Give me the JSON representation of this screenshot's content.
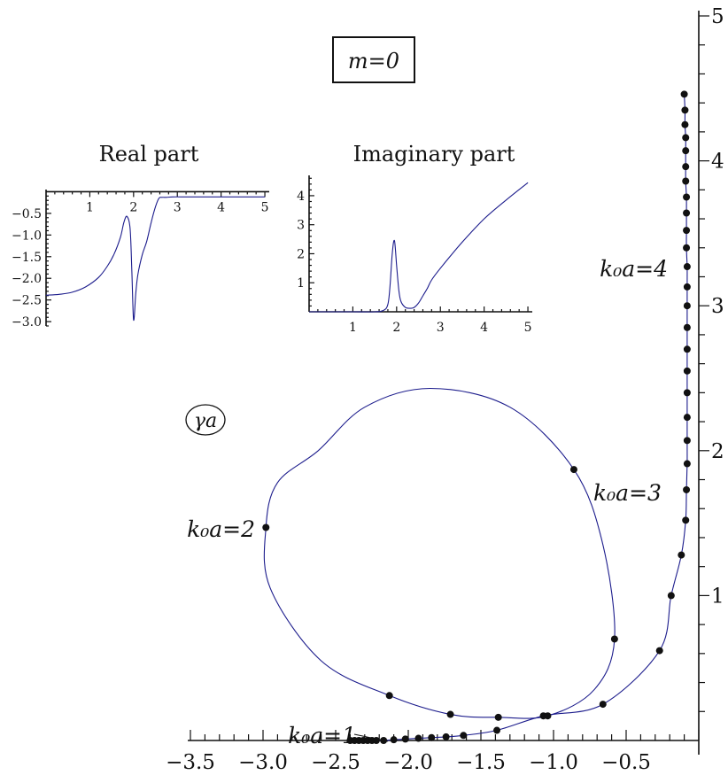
{
  "chart_data": [
    {
      "id": "main",
      "type": "scatter",
      "title": "m=0",
      "label_symbol": "γa",
      "xlim": [
        -3.6,
        0.05
      ],
      "ylim": [
        0,
        5
      ],
      "xticks": [
        -3.5,
        -3.0,
        -2.5,
        -2.0,
        -1.5,
        -1.0,
        -0.5
      ],
      "xtick_labels": [
        "−3.5",
        "−3.0",
        "−2.5",
        "−2.0",
        "−1.5",
        "−1.0",
        "−0.5"
      ],
      "yticks": [
        1,
        2,
        3,
        4,
        5
      ],
      "ytick_labels": [
        "1",
        "2",
        "3",
        "4",
        "5"
      ],
      "annotations": [
        {
          "text": "k₀a=1",
          "x": -2.07,
          "y": 0.0
        },
        {
          "text": "k₀a=2",
          "x": -3.0,
          "y": 1.47
        },
        {
          "text": "k₀a=3",
          "x": -0.85,
          "y": 1.87
        },
        {
          "text": "k₀a=4",
          "x": -0.12,
          "y": 3.24
        }
      ],
      "series": [
        {
          "points": [
            [
              -2.4,
              0.0
            ],
            [
              -2.37,
              0.0
            ],
            [
              -2.34,
              0.0
            ],
            [
              -2.31,
              0.0
            ],
            [
              -2.28,
              0.0
            ],
            [
              -2.25,
              0.0
            ],
            [
              -2.22,
              0.0
            ],
            [
              -2.17,
              0.0
            ],
            [
              -2.1,
              0.005
            ],
            [
              -2.02,
              0.01
            ],
            [
              -1.93,
              0.015
            ],
            [
              -1.84,
              0.02
            ],
            [
              -1.74,
              0.025
            ],
            [
              -1.62,
              0.035
            ],
            [
              -1.39,
              0.07
            ],
            [
              -1.07,
              0.17
            ],
            [
              -0.66,
              0.25
            ],
            [
              -0.27,
              0.62
            ],
            [
              -0.19,
              1.0
            ],
            [
              -0.12,
              1.28
            ],
            [
              -0.09,
              1.52
            ],
            [
              -0.085,
              1.73
            ],
            [
              -0.08,
              1.91
            ],
            [
              -0.08,
              2.07
            ],
            [
              -0.08,
              2.23
            ],
            [
              -0.08,
              2.4
            ],
            [
              -0.08,
              2.55
            ],
            [
              -0.08,
              2.7
            ],
            [
              -0.08,
              2.85
            ],
            [
              -0.08,
              3.0
            ],
            [
              -0.08,
              3.13
            ],
            [
              -0.08,
              3.27
            ],
            [
              -0.085,
              3.4
            ],
            [
              -0.085,
              3.52
            ],
            [
              -0.085,
              3.64
            ],
            [
              -0.085,
              3.75
            ],
            [
              -0.09,
              3.86
            ],
            [
              -0.09,
              3.96
            ],
            [
              -0.09,
              4.07
            ],
            [
              -0.09,
              4.16
            ],
            [
              -0.095,
              4.25
            ],
            [
              -0.095,
              4.35
            ],
            [
              -0.1,
              4.46
            ]
          ],
          "loop_points": [
            [
              -1.04,
              0.17
            ],
            [
              -0.58,
              0.7
            ],
            [
              -0.86,
              1.87
            ],
            [
              -2.98,
              1.47
            ],
            [
              -2.13,
              0.31
            ],
            [
              -1.71,
              0.18
            ],
            [
              -1.38,
              0.16
            ]
          ]
        }
      ]
    },
    {
      "id": "real",
      "type": "line",
      "title": "Real part",
      "xlim": [
        0,
        5.1
      ],
      "ylim": [
        -3.1,
        0.05
      ],
      "xticks": [
        1,
        2,
        3,
        4,
        5
      ],
      "xtick_labels": [
        "1",
        "2",
        "3",
        "4",
        "5"
      ],
      "yticks": [
        -0.5,
        -1.0,
        -1.5,
        -2.0,
        -2.5,
        -3.0
      ],
      "ytick_labels": [
        "−0.5",
        "−1.0",
        "−1.5",
        "−2.0",
        "−2.5",
        "−3.0"
      ],
      "x": [
        0.0,
        0.3,
        0.6,
        0.9,
        1.2,
        1.4,
        1.55,
        1.7,
        1.78,
        1.85,
        1.92,
        1.96,
        2.0,
        2.05,
        2.1,
        2.2,
        2.3,
        2.4,
        2.5,
        2.58,
        2.65,
        2.75,
        2.9,
        3.2,
        3.6,
        4.0,
        4.5,
        5.0
      ],
      "y": [
        -2.39,
        -2.37,
        -2.32,
        -2.2,
        -1.98,
        -1.72,
        -1.45,
        -1.05,
        -0.7,
        -0.57,
        -0.85,
        -1.8,
        -2.96,
        -2.35,
        -1.9,
        -1.45,
        -1.15,
        -0.72,
        -0.35,
        -0.15,
        -0.13,
        -0.13,
        -0.12,
        -0.12,
        -0.12,
        -0.12,
        -0.12,
        -0.12
      ]
    },
    {
      "id": "imag",
      "type": "line",
      "title": "Imaginary part",
      "xlim": [
        0,
        5.1
      ],
      "ylim": [
        0,
        4.7
      ],
      "xticks": [
        1,
        2,
        3,
        4,
        5
      ],
      "xtick_labels": [
        "1",
        "2",
        "3",
        "4",
        "5"
      ],
      "yticks": [
        1,
        2,
        3,
        4
      ],
      "ytick_labels": [
        "1",
        "2",
        "3",
        "4"
      ],
      "x": [
        0.0,
        0.5,
        1.0,
        1.5,
        1.7,
        1.8,
        1.85,
        1.9,
        1.95,
        2.0,
        2.05,
        2.1,
        2.2,
        2.3,
        2.4,
        2.5,
        2.6,
        2.7,
        2.8,
        3.0,
        3.5,
        4.0,
        4.5,
        5.0
      ],
      "y": [
        0.0,
        0.0,
        0.0,
        0.0,
        0.05,
        0.25,
        0.9,
        2.0,
        2.45,
        1.6,
        0.75,
        0.35,
        0.15,
        0.12,
        0.15,
        0.3,
        0.55,
        0.8,
        1.1,
        1.5,
        2.4,
        3.2,
        3.85,
        4.45
      ]
    }
  ]
}
